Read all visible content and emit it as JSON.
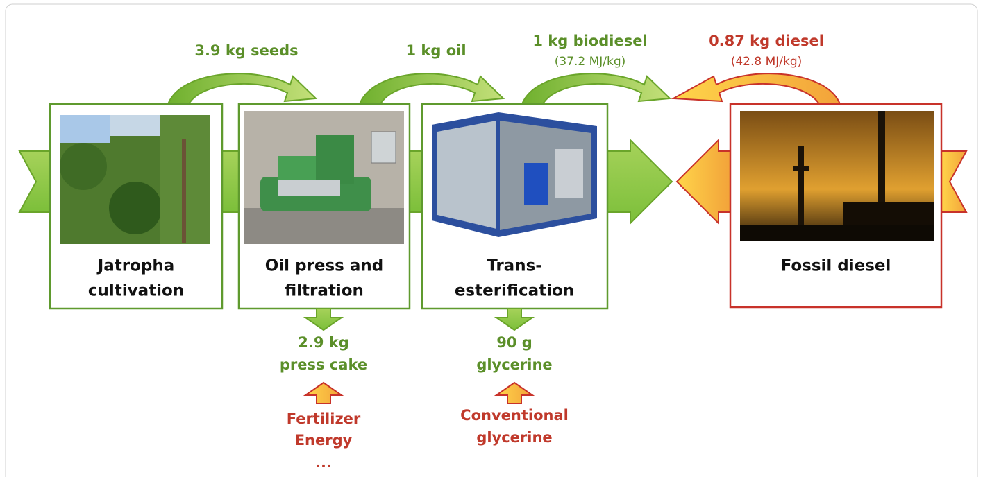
{
  "stages": [
    {
      "lines": [
        "Jatropha",
        "cultivation"
      ]
    },
    {
      "lines": [
        "Oil press and",
        "filtration"
      ]
    },
    {
      "lines": [
        "Trans-",
        "esterification"
      ]
    },
    {
      "lines": [
        "Fossil diesel"
      ]
    }
  ],
  "flows": [
    {
      "label": "3.9 kg seeds"
    },
    {
      "label": "1 kg oil"
    },
    {
      "label": "1 kg biodiesel",
      "sub": "(37.2 MJ/kg)"
    },
    {
      "label": "0.87 kg diesel",
      "sub": "(42.8 MJ/kg)"
    }
  ],
  "coproducts": [
    {
      "lines": [
        "2.9 kg",
        "press cake"
      ],
      "substitutes": [
        "Fertilizer",
        "Energy",
        "..."
      ]
    },
    {
      "lines": [
        "90 g",
        "glycerine"
      ],
      "substitutes": [
        "Conventional",
        "glycerine"
      ]
    }
  ]
}
